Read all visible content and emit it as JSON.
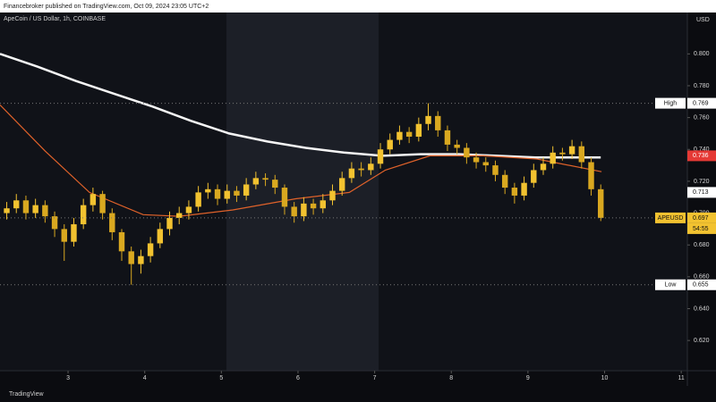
{
  "chart_data": {
    "type": "candlestick",
    "header": "Financebroker published on TradingView.com, Oct 09, 2024 23:05 UTC+2",
    "symbol": "ApeCoin / US Dollar, 1h, COINBASE",
    "currency": "USD",
    "footer": "TradingView",
    "countdown": "54:55",
    "up_color": "#f2c230",
    "down_color": "#d9a820",
    "x": [
      2.2,
      2.325,
      2.45,
      2.575,
      2.7,
      2.825,
      2.95,
      3.075,
      3.2,
      3.325,
      3.45,
      3.575,
      3.7,
      3.825,
      3.95,
      4.075,
      4.2,
      4.325,
      4.45,
      4.575,
      4.7,
      4.825,
      4.95,
      5.075,
      5.2,
      5.325,
      5.45,
      5.575,
      5.7,
      5.825,
      5.95,
      6.075,
      6.2,
      6.325,
      6.45,
      6.575,
      6.7,
      6.825,
      6.95,
      7.075,
      7.2,
      7.325,
      7.45,
      7.575,
      7.7,
      7.825,
      7.95,
      8.075,
      8.2,
      8.325,
      8.45,
      8.575,
      8.7,
      8.825,
      8.95,
      9.075,
      9.2,
      9.325,
      9.45,
      9.575,
      9.7,
      9.825,
      9.95
    ],
    "open": [
      0.7,
      0.703,
      0.708,
      0.7,
      0.705,
      0.698,
      0.69,
      0.682,
      0.693,
      0.705,
      0.712,
      0.7,
      0.688,
      0.676,
      0.668,
      0.673,
      0.681,
      0.69,
      0.697,
      0.7,
      0.704,
      0.713,
      0.715,
      0.709,
      0.714,
      0.711,
      0.718,
      0.722,
      0.721,
      0.716,
      0.704,
      0.698,
      0.706,
      0.703,
      0.708,
      0.714,
      0.722,
      0.728,
      0.727,
      0.731,
      0.74,
      0.746,
      0.751,
      0.748,
      0.756,
      0.761,
      0.752,
      0.743,
      0.741,
      0.735,
      0.732,
      0.73,
      0.724,
      0.716,
      0.711,
      0.719,
      0.727,
      0.731,
      0.738,
      0.737,
      0.742,
      0.732,
      0.715
    ],
    "high": [
      0.707,
      0.712,
      0.711,
      0.709,
      0.708,
      0.701,
      0.693,
      0.697,
      0.709,
      0.716,
      0.714,
      0.703,
      0.69,
      0.679,
      0.677,
      0.685,
      0.694,
      0.701,
      0.704,
      0.708,
      0.717,
      0.719,
      0.718,
      0.718,
      0.717,
      0.722,
      0.726,
      0.725,
      0.724,
      0.718,
      0.707,
      0.71,
      0.709,
      0.712,
      0.718,
      0.726,
      0.732,
      0.732,
      0.735,
      0.744,
      0.75,
      0.755,
      0.754,
      0.76,
      0.769,
      0.764,
      0.755,
      0.746,
      0.744,
      0.738,
      0.735,
      0.733,
      0.727,
      0.719,
      0.723,
      0.731,
      0.735,
      0.742,
      0.741,
      0.746,
      0.745,
      0.735,
      0.718
    ],
    "low": [
      0.696,
      0.7,
      0.696,
      0.697,
      0.694,
      0.685,
      0.67,
      0.679,
      0.69,
      0.701,
      0.696,
      0.683,
      0.67,
      0.655,
      0.662,
      0.669,
      0.678,
      0.686,
      0.693,
      0.696,
      0.701,
      0.709,
      0.705,
      0.706,
      0.707,
      0.708,
      0.715,
      0.717,
      0.712,
      0.699,
      0.694,
      0.695,
      0.699,
      0.7,
      0.705,
      0.711,
      0.719,
      0.723,
      0.724,
      0.728,
      0.737,
      0.743,
      0.744,
      0.745,
      0.752,
      0.748,
      0.739,
      0.737,
      0.731,
      0.728,
      0.726,
      0.72,
      0.712,
      0.706,
      0.708,
      0.716,
      0.724,
      0.728,
      0.733,
      0.734,
      0.728,
      0.711,
      0.695
    ],
    "close": [
      0.703,
      0.708,
      0.7,
      0.705,
      0.698,
      0.69,
      0.682,
      0.693,
      0.705,
      0.712,
      0.7,
      0.688,
      0.676,
      0.668,
      0.673,
      0.681,
      0.69,
      0.697,
      0.7,
      0.704,
      0.713,
      0.715,
      0.709,
      0.714,
      0.711,
      0.718,
      0.722,
      0.721,
      0.716,
      0.704,
      0.698,
      0.706,
      0.703,
      0.708,
      0.714,
      0.722,
      0.728,
      0.727,
      0.731,
      0.74,
      0.746,
      0.751,
      0.748,
      0.756,
      0.761,
      0.752,
      0.743,
      0.741,
      0.735,
      0.732,
      0.73,
      0.724,
      0.716,
      0.711,
      0.719,
      0.727,
      0.731,
      0.738,
      0.737,
      0.742,
      0.732,
      0.715,
      0.697
    ],
    "lines": [
      {
        "color": "#f5f5f5",
        "x": [
          2.112,
          2.6,
          3.1,
          3.6,
          4.1,
          4.6,
          5.1,
          5.6,
          6.1,
          6.6,
          7.1,
          7.6,
          8.1,
          8.6,
          9.1,
          9.6,
          9.95
        ],
        "values": [
          0.8,
          0.792,
          0.783,
          0.775,
          0.767,
          0.758,
          0.75,
          0.745,
          0.741,
          0.738,
          0.736,
          0.737,
          0.737,
          0.736,
          0.735,
          0.735,
          0.735
        ]
      },
      {
        "color": "#e0622a",
        "x": [
          2.112,
          2.7,
          3.28,
          3.98,
          4.45,
          5.15,
          5.97,
          6.67,
          7.14,
          7.72,
          8.42,
          9.12,
          9.96
        ],
        "values": [
          0.768,
          0.739,
          0.713,
          0.699,
          0.698,
          0.702,
          0.709,
          0.713,
          0.727,
          0.736,
          0.736,
          0.734,
          0.726
        ]
      }
    ],
    "ylim": [
      0.601,
      0.826
    ],
    "yticks": [
      {
        "value": 0.62,
        "label": "0.620"
      },
      {
        "value": 0.64,
        "label": "0.640"
      },
      {
        "value": 0.66,
        "label": "0.660"
      },
      {
        "value": 0.68,
        "label": "0.680"
      },
      {
        "value": 0.7,
        "label": "0.700"
      },
      {
        "value": 0.72,
        "label": "0.720"
      },
      {
        "value": 0.74,
        "label": "0.740"
      },
      {
        "value": 0.76,
        "label": "0.760"
      },
      {
        "value": 0.78,
        "label": "0.780"
      },
      {
        "value": 0.8,
        "label": "0.800"
      }
    ],
    "xlim": [
      2.112,
      11.08
    ],
    "xticks": [
      3,
      4,
      5,
      6,
      7,
      8,
      9,
      10,
      11
    ],
    "price_labels": [
      {
        "label": "High",
        "value": 0.769,
        "color": "#ffffff",
        "text_color": "#111111",
        "line": true
      },
      {
        "value": 0.736,
        "color": "#e53935",
        "text_color": "#ffffff"
      },
      {
        "value": 0.713,
        "color": "#ffffff",
        "text_color": "#111111"
      },
      {
        "label": "APEUSD",
        "value": 0.697,
        "color": "#f2c230",
        "text_color": "#111111",
        "line": true
      },
      {
        "label": "Low",
        "value": 0.655,
        "color": "#ffffff",
        "text_color": "#111111",
        "line": true
      }
    ]
  }
}
